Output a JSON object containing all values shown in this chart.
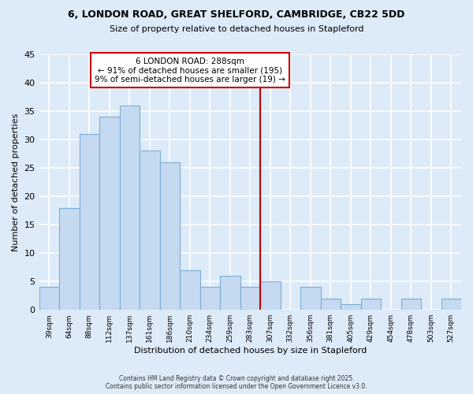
{
  "title1": "6, LONDON ROAD, GREAT SHELFORD, CAMBRIDGE, CB22 5DD",
  "title2": "Size of property relative to detached houses in Stapleford",
  "xlabel": "Distribution of detached houses by size in Stapleford",
  "ylabel": "Number of detached properties",
  "bar_values": [
    4,
    18,
    31,
    34,
    36,
    28,
    26,
    7,
    4,
    6,
    4,
    5,
    0,
    4,
    2,
    1,
    2,
    0,
    2,
    0,
    2
  ],
  "bin_labels": [
    "39sqm",
    "64sqm",
    "88sqm",
    "112sqm",
    "137sqm",
    "161sqm",
    "186sqm",
    "210sqm",
    "234sqm",
    "259sqm",
    "283sqm",
    "307sqm",
    "332sqm",
    "356sqm",
    "381sqm",
    "405sqm",
    "429sqm",
    "454sqm",
    "478sqm",
    "503sqm",
    "527sqm"
  ],
  "bar_color": "#c5d9f0",
  "bar_edge_color": "#7bafd4",
  "vline_x_index": 10.5,
  "vline_color": "#cc0000",
  "annotation_title": "6 LONDON ROAD: 288sqm",
  "annotation_line1": "← 91% of detached houses are smaller (195)",
  "annotation_line2": "9% of semi-detached houses are larger (19) →",
  "annotation_box_color": "#ffffff",
  "annotation_box_edge_color": "#cc0000",
  "ylim": [
    0,
    45
  ],
  "yticks": [
    0,
    5,
    10,
    15,
    20,
    25,
    30,
    35,
    40,
    45
  ],
  "footnote1": "Contains HM Land Registry data © Crown copyright and database right 2025.",
  "footnote2": "Contains public sector information licensed under the Open Government Licence v3.0.",
  "background_color": "#ddeaf8",
  "grid_color": "#ffffff"
}
